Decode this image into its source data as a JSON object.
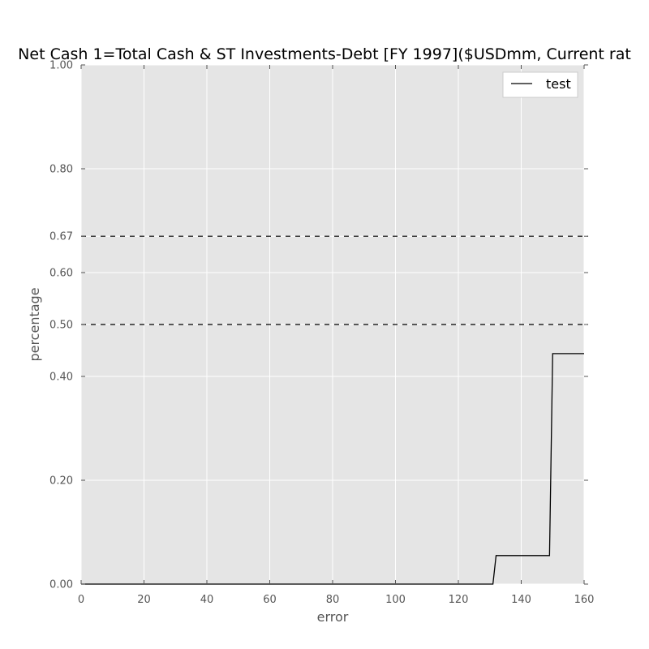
{
  "chart_data": {
    "type": "line",
    "title": "Net Cash 1=Total Cash & ST Investments-Debt [FY 1997]($USDmm, Current rat",
    "xlabel": "error",
    "ylabel": "percentage",
    "xlim": [
      0,
      160
    ],
    "ylim": [
      0,
      1
    ],
    "xticks": [
      0,
      20,
      40,
      60,
      80,
      100,
      120,
      140,
      160
    ],
    "yticks": [
      0.0,
      0.2,
      0.4,
      0.5,
      0.6,
      0.67,
      0.8,
      1.0
    ],
    "ytick_labels": [
      "0.00",
      "0.20",
      "0.40",
      "0.50",
      "0.60",
      "0.67",
      "0.80",
      "1.00"
    ],
    "grid": true,
    "legend_position": "top-right",
    "reference_lines": [
      {
        "y": 0.5,
        "style": "dashed"
      },
      {
        "y": 0.67,
        "style": "dashed"
      }
    ],
    "series": [
      {
        "name": "test",
        "color": "#000000",
        "x": [
          0,
          131,
          132,
          149,
          150,
          160
        ],
        "y": [
          0,
          0,
          0.055,
          0.055,
          0.444,
          0.444
        ]
      }
    ]
  },
  "colors": {
    "plot_background": "#e5e5e5",
    "grid": "#ffffff",
    "line": "#000000",
    "reference_line": "#000000"
  }
}
